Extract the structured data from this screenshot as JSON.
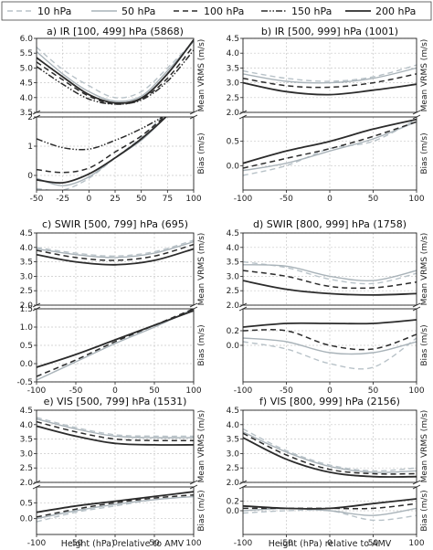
{
  "legend": {
    "items": [
      {
        "label": "10 hPa",
        "color": "#b8c2c8",
        "dash": "6 4",
        "width": 1.4
      },
      {
        "label": "50 hPa",
        "color": "#a9b3b9",
        "dash": "",
        "width": 1.4
      },
      {
        "label": "100 hPa",
        "color": "#2b2b2b",
        "dash": "6 4",
        "width": 1.5
      },
      {
        "label": "150 hPa",
        "color": "#2b2b2b",
        "dash": "7 2 1.5 2 1.5 2",
        "width": 1.5
      },
      {
        "label": "200 hPa",
        "color": "#2b2b2b",
        "dash": "",
        "width": 1.8
      }
    ]
  },
  "axis_labels": {
    "ylabel_top": "Mean VRMS (m/s)",
    "ylabel_bottom": "Bias (m/s)",
    "xlabel": "Height (hPa) relative to AMV"
  },
  "chart_data": [
    {
      "type": "line",
      "title": "a) IR [100, 499] hPa (5868)",
      "xlim": [
        -50,
        100
      ],
      "xticks": [
        "-50",
        "-25",
        "0",
        "25",
        "50",
        "75",
        "100"
      ],
      "top": {
        "ylim": [
          3.5,
          6.0
        ],
        "yticks": [
          "3.5",
          "4.0",
          "4.5",
          "5.0",
          "5.5",
          "6.0"
        ],
        "x": [
          -50,
          -25,
          0,
          25,
          50,
          75,
          100
        ],
        "series": [
          {
            "name": "10 hPa",
            "values": [
              5.7,
              4.95,
              4.4,
              4.0,
              4.2,
              5.0,
              5.9
            ]
          },
          {
            "name": "50 hPa",
            "values": [
              5.55,
              4.8,
              4.2,
              3.88,
              4.05,
              4.9,
              5.9
            ]
          },
          {
            "name": "100 hPa",
            "values": [
              5.2,
              4.6,
              4.05,
              3.78,
              3.95,
              4.65,
              5.75
            ]
          },
          {
            "name": "150 hPa",
            "values": [
              5.05,
              4.45,
              3.95,
              3.78,
              3.92,
              4.55,
              5.6
            ]
          },
          {
            "name": "200 hPa",
            "values": [
              5.35,
              4.7,
              4.1,
              3.82,
              3.98,
              4.8,
              5.95
            ]
          }
        ]
      },
      "bottom": {
        "ylim": [
          -0.5,
          2.0
        ],
        "yticks": [
          "0",
          "1",
          "2"
        ],
        "x": [
          -50,
          -25,
          0,
          25,
          50,
          75,
          100
        ],
        "series": [
          {
            "name": "10 hPa",
            "values": [
              -0.45,
              -0.5,
              -0.1,
              0.6,
              1.3,
              2.2,
              3.0
            ]
          },
          {
            "name": "50 hPa",
            "values": [
              -0.1,
              -0.35,
              -0.05,
              0.6,
              1.2,
              2.05,
              2.9
            ]
          },
          {
            "name": "100 hPa",
            "values": [
              0.2,
              0.1,
              0.25,
              0.8,
              1.35,
              2.1,
              2.9
            ]
          },
          {
            "name": "150 hPa",
            "values": [
              1.25,
              0.95,
              0.9,
              1.2,
              1.6,
              2.1,
              2.7
            ]
          },
          {
            "name": "200 hPa",
            "values": [
              -0.15,
              -0.25,
              0.05,
              0.6,
              1.25,
              2.05,
              2.95
            ]
          }
        ]
      }
    },
    {
      "type": "line",
      "title": "b) IR [500, 999] hPa (1001)",
      "xlim": [
        -100,
        100
      ],
      "xticks": [
        "-100",
        "-50",
        "0",
        "50",
        "100"
      ],
      "top": {
        "ylim": [
          2.0,
          4.5
        ],
        "yticks": [
          "2.0",
          "2.5",
          "3.0",
          "3.5",
          "4.0",
          "4.5"
        ],
        "x": [
          -100,
          -50,
          0,
          50,
          100
        ],
        "series": [
          {
            "name": "10 hPa",
            "values": [
              3.4,
              3.15,
              3.05,
              3.2,
              3.6
            ]
          },
          {
            "name": "50 hPa",
            "values": [
              3.3,
              3.05,
              3.0,
              3.15,
              3.5
            ]
          },
          {
            "name": "100 hPa",
            "values": [
              3.15,
              2.9,
              2.85,
              3.0,
              3.3
            ]
          },
          {
            "name": "200 hPa",
            "values": [
              3.0,
              2.7,
              2.6,
              2.75,
              2.95
            ]
          }
        ]
      },
      "bottom": {
        "ylim": [
          -0.5,
          1.0
        ],
        "yticks": [
          "0.0",
          "0.5"
        ],
        "x": [
          -100,
          -50,
          0,
          50,
          100
        ],
        "series": [
          {
            "name": "10 hPa",
            "values": [
              -0.2,
              0.0,
              0.35,
              0.5,
              0.95
            ]
          },
          {
            "name": "50 hPa",
            "values": [
              -0.1,
              0.05,
              0.3,
              0.55,
              0.9
            ]
          },
          {
            "name": "100 hPa",
            "values": [
              -0.05,
              0.15,
              0.35,
              0.6,
              0.9
            ]
          },
          {
            "name": "200 hPa",
            "values": [
              0.05,
              0.3,
              0.5,
              0.75,
              0.95
            ]
          }
        ]
      }
    },
    {
      "type": "line",
      "title": "c) SWIR [500, 799] hPa (695)",
      "xlim": [
        -100,
        100
      ],
      "xticks": [
        "-100",
        "-50",
        "0",
        "50",
        "100"
      ],
      "top": {
        "ylim": [
          2.0,
          4.5
        ],
        "yticks": [
          "2.0",
          "2.5",
          "3.0",
          "3.5",
          "4.0",
          "4.5"
        ],
        "x": [
          -100,
          -50,
          0,
          50,
          100
        ],
        "series": [
          {
            "name": "10 hPa",
            "values": [
              4.0,
              3.8,
              3.7,
              3.85,
              4.25
            ]
          },
          {
            "name": "50 hPa",
            "values": [
              3.95,
              3.75,
              3.65,
              3.8,
              4.2
            ]
          },
          {
            "name": "100 hPa",
            "values": [
              3.9,
              3.65,
              3.55,
              3.7,
              4.1
            ]
          },
          {
            "name": "200 hPa",
            "values": [
              3.75,
              3.5,
              3.4,
              3.55,
              3.95
            ]
          }
        ]
      },
      "bottom": {
        "ylim": [
          -0.5,
          1.5
        ],
        "yticks": [
          "-0.5",
          "0.0",
          "0.5",
          "1.0",
          "1.5"
        ],
        "x": [
          -100,
          -50,
          0,
          50,
          100
        ],
        "series": [
          {
            "name": "10 hPa",
            "values": [
              -0.35,
              0.1,
              0.6,
              1.0,
              1.5
            ]
          },
          {
            "name": "50 hPa",
            "values": [
              -0.45,
              0.05,
              0.55,
              1.0,
              1.5
            ]
          },
          {
            "name": "100 hPa",
            "values": [
              -0.35,
              0.1,
              0.6,
              1.05,
              1.5
            ]
          },
          {
            "name": "200 hPa",
            "values": [
              -0.1,
              0.25,
              0.65,
              1.05,
              1.45
            ]
          }
        ]
      }
    },
    {
      "type": "line",
      "title": "d) SWIR [800, 999] hPa (1758)",
      "xlim": [
        -100,
        100
      ],
      "xticks": [
        "-100",
        "-50",
        "0",
        "50",
        "100"
      ],
      "top": {
        "ylim": [
          2.0,
          4.5
        ],
        "yticks": [
          "2.0",
          "2.5",
          "3.0",
          "3.5",
          "4.0",
          "4.5"
        ],
        "x": [
          -100,
          -50,
          0,
          50,
          100
        ],
        "series": [
          {
            "name": "10 hPa",
            "values": [
              3.5,
              3.3,
              2.9,
              2.75,
              3.1
            ]
          },
          {
            "name": "50 hPa",
            "values": [
              3.4,
              3.35,
              3.0,
              2.85,
              3.2
            ]
          },
          {
            "name": "100 hPa",
            "values": [
              3.2,
              3.0,
              2.65,
              2.6,
              2.8
            ]
          },
          {
            "name": "200 hPa",
            "values": [
              2.85,
              2.55,
              2.4,
              2.35,
              2.4
            ]
          }
        ]
      },
      "bottom": {
        "ylim": [
          -0.5,
          0.5
        ],
        "yticks": [
          "0.0",
          "0.2"
        ],
        "x": [
          -100,
          -50,
          0,
          50,
          100
        ],
        "series": [
          {
            "name": "10 hPa",
            "values": [
              0.05,
              -0.05,
              -0.25,
              -0.3,
              0.1
            ]
          },
          {
            "name": "50 hPa",
            "values": [
              0.1,
              0.05,
              -0.1,
              -0.1,
              0.05
            ]
          },
          {
            "name": "100 hPa",
            "values": [
              0.2,
              0.2,
              0.0,
              -0.05,
              0.15
            ]
          },
          {
            "name": "200 hPa",
            "values": [
              0.25,
              0.3,
              0.3,
              0.3,
              0.35
            ]
          }
        ]
      }
    },
    {
      "type": "line",
      "title": "e) VIS [500, 799] hPa (1531)",
      "xlim": [
        -100,
        100
      ],
      "xticks": [
        "-100",
        "-50",
        "0",
        "50",
        "100"
      ],
      "top": {
        "ylim": [
          2.0,
          4.5
        ],
        "yticks": [
          "2.0",
          "2.5",
          "3.0",
          "3.5",
          "4.0",
          "4.5"
        ],
        "x": [
          -100,
          -50,
          0,
          50,
          100
        ],
        "series": [
          {
            "name": "10 hPa",
            "values": [
              4.25,
              3.9,
              3.65,
              3.6,
              3.6
            ]
          },
          {
            "name": "50 hPa",
            "values": [
              4.2,
              3.85,
              3.6,
              3.55,
              3.55
            ]
          },
          {
            "name": "100 hPa",
            "values": [
              4.1,
              3.75,
              3.5,
              3.45,
              3.45
            ]
          },
          {
            "name": "200 hPa",
            "values": [
              3.95,
              3.6,
              3.35,
              3.3,
              3.3
            ]
          }
        ]
      },
      "bottom": {
        "ylim": [
          -0.5,
          1.0
        ],
        "yticks": [
          "0.0",
          "0.5"
        ],
        "x": [
          -100,
          -50,
          0,
          50,
          100
        ],
        "series": [
          {
            "name": "10 hPa",
            "values": [
              -0.1,
              0.2,
              0.4,
              0.6,
              0.7
            ]
          },
          {
            "name": "50 hPa",
            "values": [
              0.0,
              0.25,
              0.45,
              0.6,
              0.7
            ]
          },
          {
            "name": "100 hPa",
            "values": [
              0.05,
              0.3,
              0.5,
              0.65,
              0.75
            ]
          },
          {
            "name": "200 hPa",
            "values": [
              0.2,
              0.4,
              0.55,
              0.7,
              0.85
            ]
          }
        ]
      }
    },
    {
      "type": "line",
      "title": "f) VIS [800, 999] hPa (2156)",
      "xlim": [
        -100,
        100
      ],
      "xticks": [
        "-100",
        "-50",
        "0",
        "50",
        "100"
      ],
      "top": {
        "ylim": [
          2.0,
          4.5
        ],
        "yticks": [
          "2.0",
          "2.5",
          "3.0",
          "3.5",
          "4.0",
          "4.5"
        ],
        "x": [
          -100,
          -50,
          0,
          50,
          100
        ],
        "series": [
          {
            "name": "10 hPa",
            "values": [
              3.85,
              3.1,
              2.6,
              2.4,
              2.5
            ]
          },
          {
            "name": "50 hPa",
            "values": [
              3.75,
              3.05,
              2.55,
              2.35,
              2.4
            ]
          },
          {
            "name": "100 hPa",
            "values": [
              3.7,
              2.95,
              2.45,
              2.3,
              2.3
            ]
          },
          {
            "name": "200 hPa",
            "values": [
              3.55,
              2.8,
              2.35,
              2.2,
              2.2
            ]
          }
        ]
      },
      "bottom": {
        "ylim": [
          -0.5,
          0.5
        ],
        "yticks": [
          "0.0",
          "0.2"
        ],
        "x": [
          -100,
          -50,
          0,
          50,
          100
        ],
        "series": [
          {
            "name": "10 hPa",
            "values": [
              -0.05,
              0.0,
              0.0,
              -0.2,
              -0.1
            ]
          },
          {
            "name": "50 hPa",
            "values": [
              0.0,
              0.05,
              0.0,
              -0.1,
              0.05
            ]
          },
          {
            "name": "100 hPa",
            "values": [
              0.05,
              0.05,
              0.05,
              0.05,
              0.15
            ]
          },
          {
            "name": "200 hPa",
            "values": [
              0.1,
              0.05,
              0.05,
              0.15,
              0.25
            ]
          }
        ]
      }
    }
  ]
}
